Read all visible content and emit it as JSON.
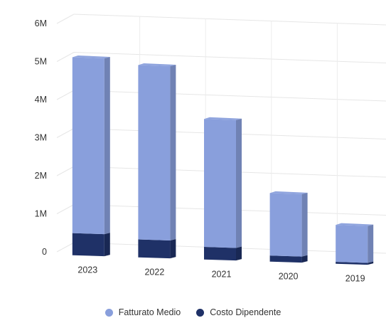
{
  "chart_data": {
    "type": "bar",
    "stacked": true,
    "style": "3d",
    "categories": [
      "2023",
      "2022",
      "2021",
      "2020",
      "2019"
    ],
    "series": [
      {
        "name": "Costo Dipendente",
        "values": [
          580000,
          470000,
          330000,
          160000,
          50000
        ],
        "color": "#1f3167"
      },
      {
        "name": "Fatturato Medio",
        "values": [
          4620000,
          4580000,
          3360000,
          1640000,
          970000
        ],
        "color": "#899fdc"
      }
    ],
    "y_ticks": [
      "0",
      "1M",
      "2M",
      "3M",
      "4M",
      "5M",
      "6M"
    ],
    "ylim": [
      0,
      6000000
    ],
    "grid": true,
    "legend": [
      "Fatturato Medio",
      "Costo Dipendente"
    ],
    "legend_position": "bottom"
  }
}
